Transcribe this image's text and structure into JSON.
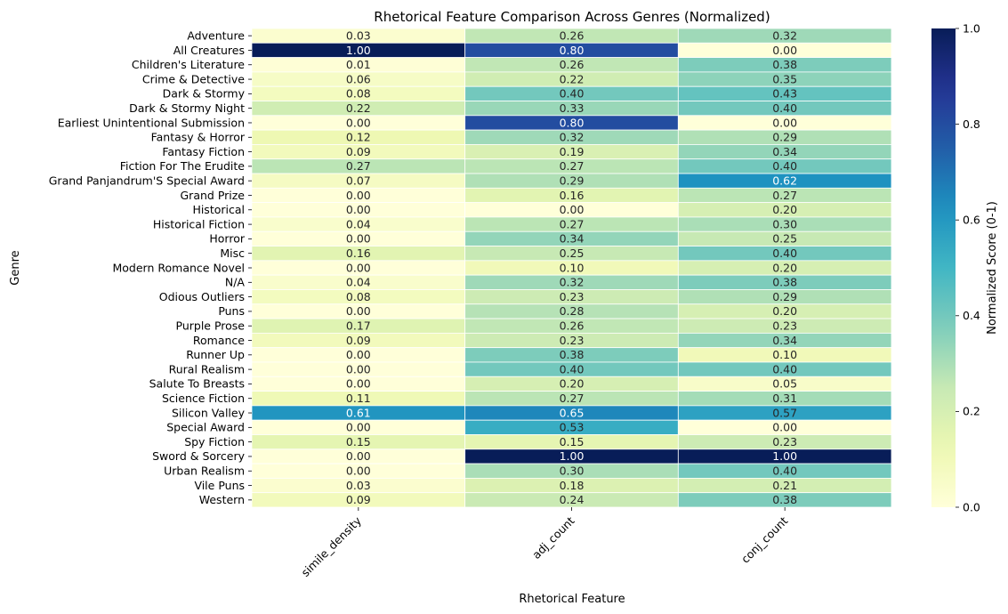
{
  "chart_data": {
    "type": "heatmap",
    "title": "Rhetorical Feature Comparison Across Genres (Normalized)",
    "xlabel": "Rhetorical Feature",
    "ylabel": "Genre",
    "colorbar_label": "Normalized Score (0-1)",
    "colormap": "YlGnBu",
    "colorbar_range": [
      0,
      1
    ],
    "colorbar_ticks": [
      "0.0",
      "0.2",
      "0.4",
      "0.6",
      "0.8",
      "1.0"
    ],
    "columns": [
      "simile_density",
      "adj_count",
      "conj_count"
    ],
    "rows": [
      "Adventure",
      "All Creatures",
      "Children's Literature",
      "Crime & Detective",
      "Dark & Stormy",
      "Dark & Stormy Night",
      "Earliest Unintentional Submission",
      "Fantasy & Horror",
      "Fantasy Fiction",
      "Fiction For The Erudite",
      "Grand Panjandrum'S Special Award",
      "Grand Prize",
      "Historical",
      "Historical Fiction",
      "Horror",
      "Misc",
      "Modern Romance Novel",
      "N/A",
      "Odious Outliers",
      "Puns",
      "Purple Prose",
      "Romance",
      "Runner Up",
      "Rural Realism",
      "Salute To Breasts",
      "Science Fiction",
      "Silicon Valley",
      "Special Award",
      "Spy Fiction",
      "Sword & Sorcery",
      "Urban Realism",
      "Vile Puns",
      "Western"
    ],
    "values": [
      [
        0.03,
        0.26,
        0.32
      ],
      [
        1.0,
        0.8,
        0.0
      ],
      [
        0.01,
        0.26,
        0.38
      ],
      [
        0.06,
        0.22,
        0.35
      ],
      [
        0.08,
        0.4,
        0.43
      ],
      [
        0.22,
        0.33,
        0.4
      ],
      [
        0.0,
        0.8,
        0.0
      ],
      [
        0.12,
        0.32,
        0.29
      ],
      [
        0.09,
        0.19,
        0.34
      ],
      [
        0.27,
        0.27,
        0.4
      ],
      [
        0.07,
        0.29,
        0.62
      ],
      [
        0.0,
        0.16,
        0.27
      ],
      [
        0.0,
        0.0,
        0.2
      ],
      [
        0.04,
        0.27,
        0.3
      ],
      [
        0.0,
        0.34,
        0.25
      ],
      [
        0.16,
        0.25,
        0.4
      ],
      [
        0.0,
        0.1,
        0.2
      ],
      [
        0.04,
        0.32,
        0.38
      ],
      [
        0.08,
        0.23,
        0.29
      ],
      [
        0.0,
        0.28,
        0.2
      ],
      [
        0.17,
        0.26,
        0.23
      ],
      [
        0.09,
        0.23,
        0.34
      ],
      [
        0.0,
        0.38,
        0.1
      ],
      [
        0.0,
        0.4,
        0.4
      ],
      [
        0.0,
        0.2,
        0.05
      ],
      [
        0.11,
        0.27,
        0.31
      ],
      [
        0.61,
        0.65,
        0.57
      ],
      [
        0.0,
        0.53,
        0.0
      ],
      [
        0.15,
        0.15,
        0.23
      ],
      [
        0.0,
        1.0,
        1.0
      ],
      [
        0.0,
        0.3,
        0.4
      ],
      [
        0.03,
        0.18,
        0.21
      ],
      [
        0.09,
        0.24,
        0.38
      ]
    ],
    "value_format": "2-decimal"
  }
}
